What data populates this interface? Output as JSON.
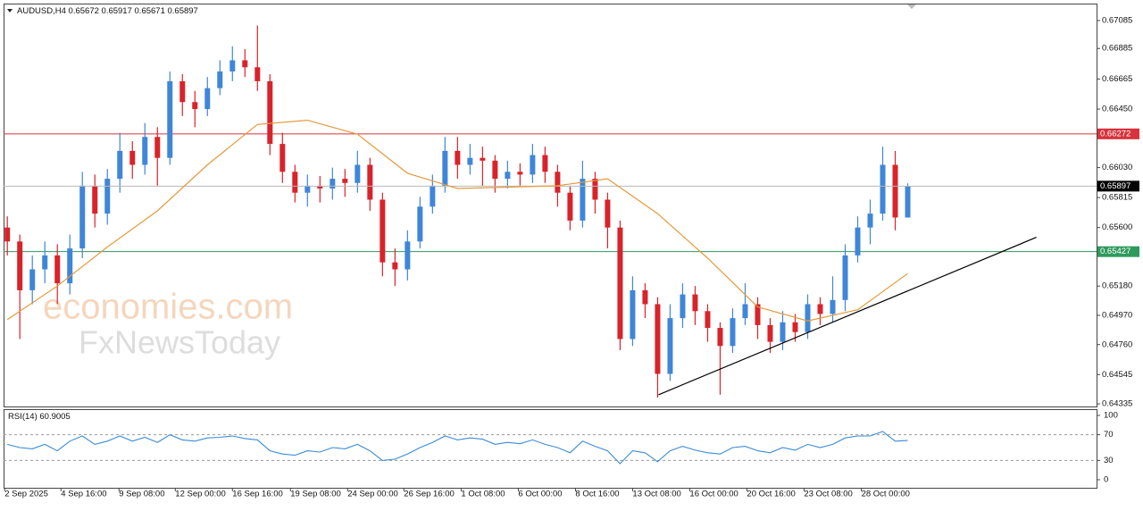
{
  "chart_data": {
    "type": "candlestick",
    "title": "AUDUSD,H4",
    "up_color": "#3f86d8",
    "down_color": "#d8232a",
    "candles": [
      [
        0.656,
        0.6568,
        0.654,
        0.655
      ],
      [
        0.655,
        0.6555,
        0.648,
        0.6515
      ],
      [
        0.6515,
        0.654,
        0.6505,
        0.653
      ],
      [
        0.653,
        0.655,
        0.652,
        0.654
      ],
      [
        0.654,
        0.6548,
        0.6505,
        0.652
      ],
      [
        0.652,
        0.6555,
        0.6512,
        0.6545
      ],
      [
        0.6545,
        0.66,
        0.6538,
        0.659
      ],
      [
        0.659,
        0.6598,
        0.656,
        0.657
      ],
      [
        0.657,
        0.6602,
        0.6562,
        0.6595
      ],
      [
        0.6595,
        0.6628,
        0.6585,
        0.6615
      ],
      [
        0.6615,
        0.6622,
        0.6595,
        0.6605
      ],
      [
        0.6605,
        0.6635,
        0.6598,
        0.6625
      ],
      [
        0.6625,
        0.6632,
        0.659,
        0.661
      ],
      [
        0.661,
        0.6672,
        0.6605,
        0.6665
      ],
      [
        0.6665,
        0.667,
        0.664,
        0.665
      ],
      [
        0.665,
        0.6658,
        0.6632,
        0.6645
      ],
      [
        0.6645,
        0.6668,
        0.664,
        0.666
      ],
      [
        0.666,
        0.668,
        0.6655,
        0.6672
      ],
      [
        0.6672,
        0.669,
        0.6665,
        0.668
      ],
      [
        0.668,
        0.6688,
        0.6668,
        0.6675
      ],
      [
        0.6675,
        0.6705,
        0.6658,
        0.6665
      ],
      [
        0.6665,
        0.667,
        0.6612,
        0.662
      ],
      [
        0.662,
        0.6628,
        0.6592,
        0.66
      ],
      [
        0.66,
        0.6605,
        0.6578,
        0.6585
      ],
      [
        0.6585,
        0.6598,
        0.6575,
        0.659
      ],
      [
        0.659,
        0.6597,
        0.6578,
        0.6588
      ],
      [
        0.6588,
        0.6603,
        0.658,
        0.6595
      ],
      [
        0.6595,
        0.6602,
        0.6582,
        0.6592
      ],
      [
        0.6592,
        0.6615,
        0.6585,
        0.6605
      ],
      [
        0.6605,
        0.661,
        0.6572,
        0.658
      ],
      [
        0.658,
        0.6585,
        0.6525,
        0.6535
      ],
      [
        0.6535,
        0.6545,
        0.6518,
        0.653
      ],
      [
        0.653,
        0.6558,
        0.6522,
        0.655
      ],
      [
        0.655,
        0.6582,
        0.6545,
        0.6575
      ],
      [
        0.6575,
        0.6598,
        0.657,
        0.659
      ],
      [
        0.659,
        0.6625,
        0.6585,
        0.6615
      ],
      [
        0.6615,
        0.6625,
        0.6595,
        0.6605
      ],
      [
        0.6605,
        0.662,
        0.6598,
        0.661
      ],
      [
        0.661,
        0.6618,
        0.659,
        0.6608
      ],
      [
        0.6608,
        0.6612,
        0.6585,
        0.6595
      ],
      [
        0.6595,
        0.6608,
        0.6588,
        0.66
      ],
      [
        0.66,
        0.6606,
        0.659,
        0.6598
      ],
      [
        0.6598,
        0.662,
        0.6592,
        0.6612
      ],
      [
        0.6612,
        0.6618,
        0.6592,
        0.66
      ],
      [
        0.66,
        0.6605,
        0.6575,
        0.6585
      ],
      [
        0.6585,
        0.659,
        0.6558,
        0.6565
      ],
      [
        0.6565,
        0.6608,
        0.656,
        0.6595
      ],
      [
        0.6595,
        0.66,
        0.657,
        0.658
      ],
      [
        0.658,
        0.6585,
        0.6545,
        0.656
      ],
      [
        0.656,
        0.6565,
        0.6472,
        0.648
      ],
      [
        0.648,
        0.6525,
        0.6475,
        0.6515
      ],
      [
        0.6515,
        0.652,
        0.6495,
        0.6505
      ],
      [
        0.6505,
        0.651,
        0.6438,
        0.6455
      ],
      [
        0.6455,
        0.6505,
        0.645,
        0.6495
      ],
      [
        0.6495,
        0.652,
        0.6488,
        0.6512
      ],
      [
        0.6512,
        0.6518,
        0.649,
        0.65
      ],
      [
        0.65,
        0.6505,
        0.6478,
        0.6488
      ],
      [
        0.6488,
        0.6492,
        0.644,
        0.6475
      ],
      [
        0.6475,
        0.6502,
        0.647,
        0.6495
      ],
      [
        0.6495,
        0.652,
        0.649,
        0.6505
      ],
      [
        0.6505,
        0.651,
        0.648,
        0.649
      ],
      [
        0.649,
        0.6495,
        0.647,
        0.6478
      ],
      [
        0.6478,
        0.65,
        0.6472,
        0.6492
      ],
      [
        0.6492,
        0.6498,
        0.6478,
        0.6485
      ],
      [
        0.6485,
        0.6512,
        0.648,
        0.6505
      ],
      [
        0.6505,
        0.651,
        0.649,
        0.6498
      ],
      [
        0.6498,
        0.6525,
        0.6492,
        0.6508
      ],
      [
        0.6508,
        0.6548,
        0.65,
        0.654
      ],
      [
        0.654,
        0.6568,
        0.6535,
        0.656
      ],
      [
        0.656,
        0.658,
        0.6548,
        0.657
      ],
      [
        0.657,
        0.6618,
        0.6565,
        0.6605
      ],
      [
        0.6605,
        0.6615,
        0.6558,
        0.65672
      ],
      [
        0.65672,
        0.65917,
        0.65671,
        0.65897
      ]
    ],
    "xlim": [
      -0.3,
      87.1
    ],
    "ylim": [
      0.64316,
      0.67207
    ],
    "yticks": [
      0.67085,
      0.66885,
      0.66665,
      {
        "value": 0.6645,
        "label": "0.66450"
      },
      {
        "value": 0.6603,
        "label": "0.66030"
      },
      0.65815,
      {
        "value": 0.656,
        "label": "0.65600"
      },
      {
        "value": 0.6518,
        "label": "0.65180"
      },
      {
        "value": 0.6497,
        "label": "0.64970"
      },
      {
        "value": 0.6476,
        "label": "0.64760"
      },
      0.64545,
      0.64335
    ],
    "xticks": [
      {
        "value": -0.21,
        "label": "2 Sep 2025"
      },
      {
        "value": 4.29,
        "label": "4 Sep 16:00"
      },
      {
        "value": 8.93,
        "label": "9 Sep 08:00"
      },
      {
        "value": 13.43,
        "label": "12 Sep 00:00"
      },
      {
        "value": 18,
        "label": "16 Sep 16:00"
      },
      {
        "value": 22.64,
        "label": "19 Sep 08:00"
      },
      {
        "value": 27.21,
        "label": "24 Sep 00:00"
      },
      {
        "value": 31.71,
        "label": "26 Sep 16:00"
      },
      {
        "value": 36.29,
        "label": "1 Oct 08:00"
      },
      {
        "value": 40.86,
        "label": "6 Oct 00:00"
      },
      {
        "value": 45.43,
        "label": "8 Oct 16:00"
      },
      {
        "value": 50,
        "label": "13 Oct 08:00"
      },
      {
        "value": 54.57,
        "label": "16 Oct 00:00"
      },
      {
        "value": 59.14,
        "label": "20 Oct 16:00"
      },
      {
        "value": 63.71,
        "label": "23 Oct 08:00"
      },
      {
        "value": 68.29,
        "label": "28 Oct 00:00"
      }
    ],
    "ma": {
      "color": "#e49a3c",
      "x": [
        0,
        4,
        8,
        12,
        16,
        20,
        24,
        28,
        32,
        36,
        40,
        44,
        48,
        52,
        56,
        60,
        64,
        68,
        72
      ],
      "values": [
        0.6494,
        0.6518,
        0.6546,
        0.6572,
        0.6605,
        0.6634,
        0.6637,
        0.6627,
        0.6599,
        0.6588,
        0.6589,
        0.659,
        0.6595,
        0.657,
        0.6538,
        0.6503,
        0.6493,
        0.6501,
        0.6527
      ]
    },
    "hlines": [
      {
        "value": 0.66272,
        "color": "#d8323c"
      },
      {
        "value": 0.65427,
        "color": "#2f9a5c"
      }
    ],
    "trendline": {
      "x": [
        52.07,
        82.29
      ],
      "y": [
        0.644,
        0.6553
      ]
    },
    "watermark": [
      "economies.com",
      "FxNewsToday"
    ],
    "rsi": {
      "name": "RSI(14)",
      "color": "#3b8bd6",
      "ylim": [
        -12.5,
        109.7
      ],
      "yticks": [
        100,
        70,
        30,
        0
      ],
      "levels": [
        70,
        30
      ],
      "values": [
        55,
        50,
        48,
        55,
        45,
        60,
        68,
        55,
        60,
        68,
        60,
        66,
        58,
        70,
        62,
        60,
        65,
        66,
        68,
        64,
        62,
        45,
        40,
        38,
        45,
        43,
        50,
        48,
        55,
        45,
        30,
        32,
        40,
        50,
        58,
        68,
        62,
        65,
        63,
        55,
        58,
        56,
        62,
        55,
        50,
        42,
        60,
        52,
        45,
        25,
        45,
        42,
        28,
        45,
        52,
        46,
        42,
        40,
        50,
        52,
        45,
        42,
        50,
        46,
        55,
        50,
        55,
        65,
        68,
        68,
        75,
        60,
        60.9005
      ]
    }
  }
}
